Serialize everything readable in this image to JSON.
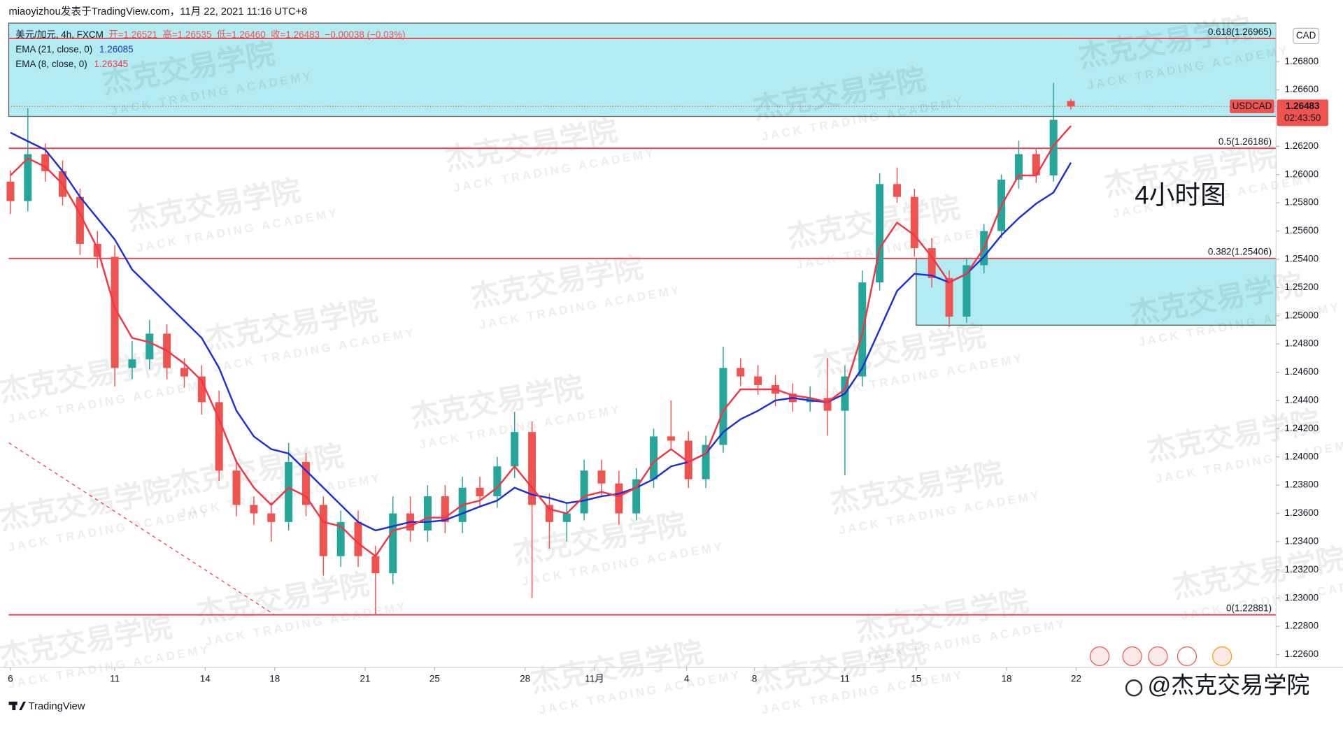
{
  "header": "miaoyizhou发表于TradingView.com，11月 22, 2021 11:16 UTC+8",
  "legend": {
    "symbol": "美元/加元, 4h, FXCM",
    "open": "开=1.26521",
    "high": "高=1.26535",
    "low": "低=1.26460",
    "close": "收=1.26483",
    "change": "−0.00038 (−0.03%)",
    "ema21": "EMA (21, close, 0)",
    "ema21_value": "1.26085",
    "ema8": "EMA (8, close, 0)",
    "ema8_value": "1.26345"
  },
  "watermark": {
    "cn": "杰克交易学院",
    "en": "JACK TRADING ACADEMY"
  },
  "footer": {
    "brand": "TradingView",
    "credit": "@杰克交易学院"
  },
  "chart_data": {
    "type": "candlestick",
    "annotation": "4小时图",
    "currency": "CAD",
    "price_label": "1.26483",
    "countdown": "02:43:50",
    "ylim": [
      1.22509,
      1.27073
    ],
    "yticks": [
      {
        "value": 1.226,
        "label": "1.22600"
      },
      {
        "value": 1.228,
        "label": "1.22800"
      },
      {
        "value": 1.23,
        "label": "1.23000"
      },
      {
        "value": 1.232,
        "label": "1.23200"
      },
      {
        "value": 1.234,
        "label": "1.23400"
      },
      {
        "value": 1.236,
        "label": "1.23600"
      },
      {
        "value": 1.238,
        "label": "1.23800"
      },
      {
        "value": 1.24,
        "label": "1.24000"
      },
      {
        "value": 1.242,
        "label": "1.24200"
      },
      {
        "value": 1.244,
        "label": "1.24400"
      },
      {
        "value": 1.246,
        "label": "1.24600"
      },
      {
        "value": 1.248,
        "label": "1.24800"
      },
      {
        "value": 1.25,
        "label": "1.25000"
      },
      {
        "value": 1.252,
        "label": "1.25200"
      },
      {
        "value": 1.254,
        "label": "1.25400"
      },
      {
        "value": 1.256,
        "label": "1.25600"
      },
      {
        "value": 1.258,
        "label": "1.25800"
      },
      {
        "value": 1.26,
        "label": "1.26000"
      },
      {
        "value": 1.262,
        "label": "1.26200"
      },
      {
        "value": 1.264,
        "label": "1.26400"
      },
      {
        "value": 1.266,
        "label": "1.26600"
      },
      {
        "value": 1.268,
        "label": "1.26800"
      }
    ],
    "xlim": [
      -0.1,
      72.8
    ],
    "xticks": [
      {
        "value": 0,
        "label": "6"
      },
      {
        "value": 6,
        "label": "11"
      },
      {
        "value": 11.2,
        "label": "14"
      },
      {
        "value": 15.2,
        "label": "18"
      },
      {
        "value": 20.4,
        "label": "21"
      },
      {
        "value": 24.4,
        "label": "25"
      },
      {
        "value": 29.6,
        "label": "28"
      },
      {
        "value": 33.6,
        "label": "11月"
      },
      {
        "value": 38.9,
        "label": "4"
      },
      {
        "value": 42.8,
        "label": "8"
      },
      {
        "value": 48,
        "label": "11"
      },
      {
        "value": 52.1,
        "label": "15"
      },
      {
        "value": 57.3,
        "label": "18"
      },
      {
        "value": 61.3,
        "label": "22"
      }
    ],
    "grid": false,
    "levels": [
      {
        "label": "0.618(1.26965)",
        "value": 1.26965,
        "color": "#f23645"
      },
      {
        "label": "0.5(1.26186)",
        "value": 1.26186,
        "color": "#f23645"
      },
      {
        "label": "0.382(1.25406)",
        "value": 1.25406,
        "color": "#f23645"
      },
      {
        "label": "0(1.22881)",
        "value": 1.22881,
        "color": "#f23645"
      }
    ],
    "zones": [
      {
        "y": [
          1.26412,
          1.27073
        ],
        "x": [
          -0.1,
          72.8
        ],
        "color": "#b2ebf2"
      },
      {
        "y": [
          1.24933,
          1.25406
        ],
        "x": [
          52.1,
          72.8
        ],
        "color": "#b2ebf2"
      }
    ],
    "trendline": {
      "x": [
        -0.1,
        15.2
      ],
      "y": [
        1.241,
        1.22881
      ],
      "color": "#f23645"
    },
    "series": [
      {
        "name": "USDCAD",
        "up_color": "#26a69a",
        "down_color": "#ef5350",
        "open": [
          1.2595,
          1.25812,
          1.26145,
          1.26024,
          1.25842,
          1.25509,
          1.25418,
          1.2463,
          1.24691,
          1.24873,
          1.2463,
          1.2457,
          1.24388,
          1.23903,
          1.2366,
          1.236,
          1.23539,
          1.23964,
          1.2366,
          1.23297,
          1.23539,
          1.23297,
          1.23176,
          1.236,
          1.23479,
          1.23721,
          1.23539,
          1.23782,
          1.23721,
          1.23933,
          1.24176,
          1.2366,
          1.23539,
          1.236,
          1.23903,
          1.23812,
          1.236,
          1.23842,
          1.24145,
          1.24115,
          1.23842,
          1.24085,
          1.2463,
          1.2457,
          1.24509,
          1.24448,
          1.24388,
          1.24418,
          1.24327,
          1.2457,
          1.25236,
          1.25933,
          1.25842,
          1.25479,
          1.25267,
          1.24994,
          1.25358,
          1.256,
          1.25964,
          1.26145,
          1.25994,
          1.26521
        ],
        "high": [
          1.2603,
          1.2647,
          1.2622,
          1.261,
          1.259,
          1.256,
          1.255,
          1.2482,
          1.2497,
          1.2494,
          1.247,
          1.2465,
          1.2447,
          1.2398,
          1.2372,
          1.2368,
          1.241,
          1.2403,
          1.2372,
          1.2362,
          1.2362,
          1.2337,
          1.2372,
          1.2372,
          1.238,
          1.238,
          1.2386,
          1.2386,
          1.24,
          1.2432,
          1.2425,
          1.2374,
          1.2368,
          1.2398,
          1.2398,
          1.239,
          1.2392,
          1.242,
          1.244,
          1.2418,
          1.2415,
          1.2478,
          1.247,
          1.2465,
          1.2458,
          1.2452,
          1.245,
          1.247,
          1.2465,
          1.2532,
          1.2601,
          1.2605,
          1.259,
          1.2555,
          1.2532,
          1.254,
          1.2565,
          1.26,
          1.2624,
          1.2618,
          1.2665,
          1.26535
        ],
        "low": [
          1.2572,
          1.2574,
          1.2595,
          1.2578,
          1.2543,
          1.2534,
          1.245,
          1.2455,
          1.2462,
          1.2455,
          1.2449,
          1.243,
          1.2383,
          1.2358,
          1.2352,
          1.234,
          1.2348,
          1.2358,
          1.2316,
          1.2322,
          1.2322,
          1.2288,
          1.231,
          1.234,
          1.234,
          1.2346,
          1.2346,
          1.2364,
          1.2364,
          1.2385,
          1.23,
          1.2335,
          1.234,
          1.2355,
          1.2373,
          1.2352,
          1.2355,
          1.2378,
          1.2405,
          1.2378,
          1.2378,
          1.2403,
          1.245,
          1.2444,
          1.2436,
          1.2432,
          1.2432,
          1.2415,
          1.2387,
          1.245,
          1.2518,
          1.258,
          1.2542,
          1.252,
          1.2492,
          1.2495,
          1.253,
          1.2555,
          1.259,
          1.2594,
          1.2595,
          1.2646
        ],
        "close": [
          1.25812,
          1.26145,
          1.26024,
          1.25842,
          1.25509,
          1.25418,
          1.2463,
          1.24691,
          1.24873,
          1.2463,
          1.2457,
          1.24388,
          1.23903,
          1.2366,
          1.236,
          1.23539,
          1.23964,
          1.2366,
          1.23297,
          1.23539,
          1.23297,
          1.23176,
          1.236,
          1.23479,
          1.23721,
          1.23539,
          1.23782,
          1.23721,
          1.23933,
          1.24176,
          1.2366,
          1.23539,
          1.236,
          1.23903,
          1.23812,
          1.236,
          1.23842,
          1.24145,
          1.24115,
          1.23842,
          1.24085,
          1.2463,
          1.2457,
          1.24509,
          1.24448,
          1.24388,
          1.24418,
          1.24327,
          1.2457,
          1.25236,
          1.25933,
          1.25842,
          1.25479,
          1.25267,
          1.24994,
          1.25358,
          1.256,
          1.25964,
          1.26145,
          1.25994,
          1.26388,
          1.26483
        ]
      },
      {
        "name": "EMA (21, close, 0)",
        "color": "#1e2fd6",
        "values": [
          1.26297,
          1.26236,
          1.26176,
          1.26024,
          1.25842,
          1.25691,
          1.2554,
          1.25327,
          1.25206,
          1.25085,
          1.24964,
          1.24843,
          1.2463,
          1.24327,
          1.24145,
          1.24055,
          1.24024,
          1.23903,
          1.23782,
          1.2366,
          1.23539,
          1.23479,
          1.23509,
          1.23539,
          1.23539,
          1.23552,
          1.236,
          1.23648,
          1.23691,
          1.23782,
          1.23733,
          1.23709,
          1.23673,
          1.23691,
          1.23721,
          1.23739,
          1.23782,
          1.23842,
          1.23933,
          1.23964,
          1.24024,
          1.24176,
          1.24267,
          1.24327,
          1.244,
          1.24418,
          1.244,
          1.24388,
          1.24448,
          1.2463,
          1.24903,
          1.25176,
          1.25297,
          1.25285,
          1.25236,
          1.25297,
          1.25418,
          1.2557,
          1.25691,
          1.25794,
          1.25873,
          1.26085
        ]
      },
      {
        "name": "EMA (8, close, 0)",
        "color": "#f23645",
        "values": [
          1.25994,
          1.26115,
          1.26055,
          1.25933,
          1.25721,
          1.25479,
          1.25055,
          1.24843,
          1.24812,
          1.24752,
          1.24661,
          1.2454,
          1.24267,
          1.23964,
          1.23782,
          1.2366,
          1.23782,
          1.23721,
          1.23539,
          1.23509,
          1.23388,
          1.23297,
          1.23479,
          1.23509,
          1.2357,
          1.2357,
          1.2366,
          1.23691,
          1.23782,
          1.23933,
          1.23782,
          1.2363,
          1.236,
          1.23721,
          1.23752,
          1.23721,
          1.23782,
          1.23964,
          1.24055,
          1.23964,
          1.24024,
          1.24327,
          1.24479,
          1.24479,
          1.24479,
          1.24436,
          1.24418,
          1.24388,
          1.24479,
          1.24873,
          1.25479,
          1.2566,
          1.2557,
          1.25418,
          1.25236,
          1.25297,
          1.25479,
          1.25782,
          1.25994,
          1.25994,
          1.26206,
          1.26345
        ]
      }
    ]
  }
}
